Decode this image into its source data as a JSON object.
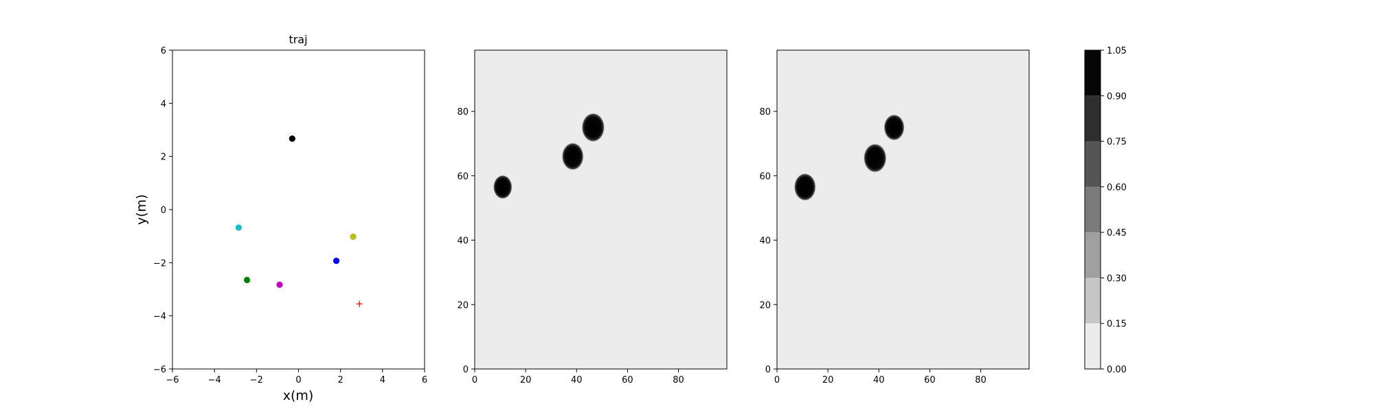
{
  "chart_data": [
    {
      "type": "scatter",
      "title": "traj",
      "xlabel": "x(m)",
      "ylabel": "y(m)",
      "xlim": [
        -6,
        6
      ],
      "ylim": [
        -6,
        6
      ],
      "xticks": [
        "−6",
        "−4",
        "−2",
        "0",
        "2",
        "4",
        "6"
      ],
      "yticks": [
        "−6",
        "−4",
        "−2",
        "0",
        "2",
        "4",
        "6"
      ],
      "points": [
        {
          "x": -0.3,
          "y": 2.67,
          "color": "#000000",
          "marker": "circle"
        },
        {
          "x": -2.85,
          "y": -0.68,
          "color": "#17becf",
          "marker": "circle"
        },
        {
          "x": 2.6,
          "y": -1.02,
          "color": "#bcbd22",
          "marker": "circle"
        },
        {
          "x": 1.8,
          "y": -1.93,
          "color": "#0000ff",
          "marker": "circle"
        },
        {
          "x": -2.45,
          "y": -2.65,
          "color": "#008000",
          "marker": "circle"
        },
        {
          "x": -0.9,
          "y": -2.83,
          "color": "#bf00bf",
          "marker": "circle"
        },
        {
          "x": 2.9,
          "y": -3.55,
          "color": "#ff0000",
          "marker": "plus"
        }
      ]
    },
    {
      "type": "heatmap",
      "xlim": [
        0,
        99
      ],
      "ylim": [
        0,
        99
      ],
      "xticks": [
        "0",
        "20",
        "40",
        "60",
        "80"
      ],
      "yticks": [
        "0",
        "20",
        "40",
        "60",
        "80"
      ],
      "background_value": 0.05,
      "blobs": [
        {
          "cx": 11,
          "cy": 56.5,
          "r": 3.3
        },
        {
          "cx": 38.5,
          "cy": 66,
          "r": 3.8
        },
        {
          "cx": 46.5,
          "cy": 75,
          "r": 4.0
        }
      ]
    },
    {
      "type": "heatmap",
      "xlim": [
        0,
        99
      ],
      "ylim": [
        0,
        99
      ],
      "xticks": [
        "0",
        "20",
        "40",
        "60",
        "80"
      ],
      "yticks": [
        "0",
        "20",
        "40",
        "60",
        "80"
      ],
      "background_value": 0.05,
      "blobs": [
        {
          "cx": 11,
          "cy": 56.5,
          "r": 3.8
        },
        {
          "cx": 38.5,
          "cy": 65.5,
          "r": 4.0
        },
        {
          "cx": 46,
          "cy": 75,
          "r": 3.6
        }
      ]
    }
  ],
  "colorbar": {
    "levels": [
      0.0,
      0.15,
      0.3,
      0.45,
      0.6,
      0.75,
      0.9,
      1.05
    ],
    "labels": [
      "0.00",
      "0.15",
      "0.30",
      "0.45",
      "0.60",
      "0.75",
      "0.90",
      "1.05"
    ],
    "colors": [
      "#ececec",
      "#c6c6c6",
      "#a0a0a0",
      "#7b7b7b",
      "#555555",
      "#2e2e2e",
      "#060606"
    ]
  }
}
